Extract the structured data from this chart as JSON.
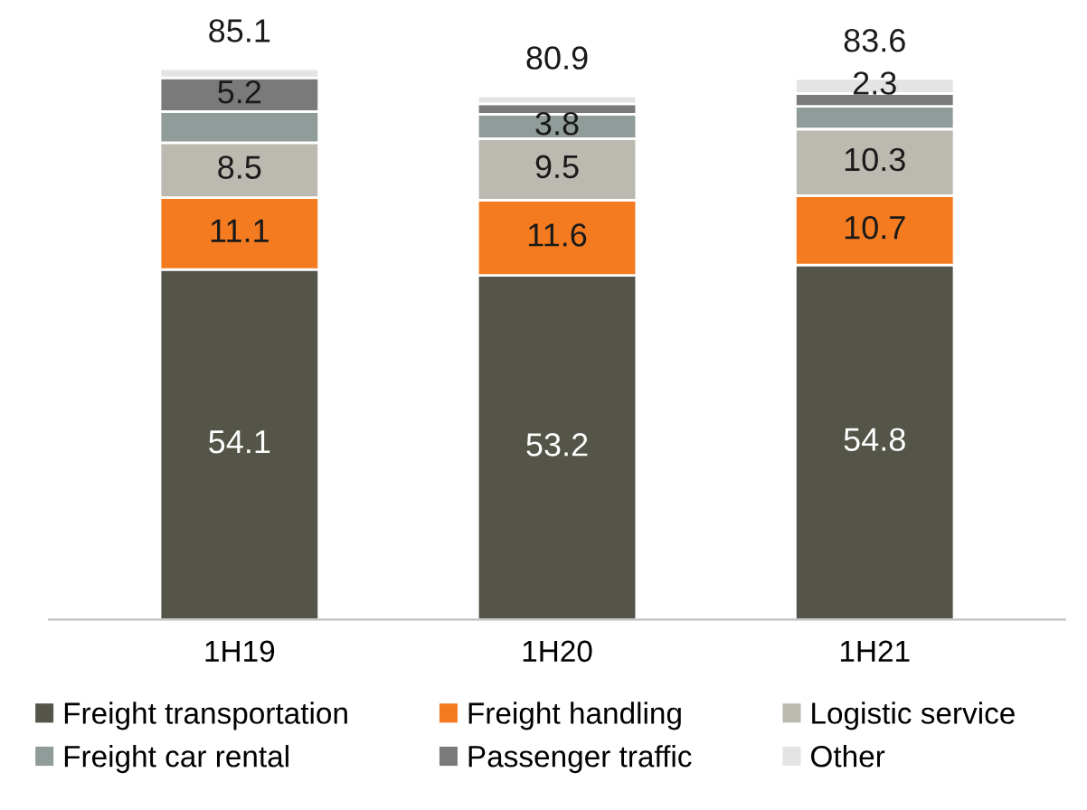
{
  "chart_data": {
    "type": "bar",
    "stacked": true,
    "categories": [
      "1H19",
      "1H20",
      "1H21"
    ],
    "series": [
      {
        "name": "Freight transportation",
        "color": "#545448",
        "values": [
          54.1,
          53.2,
          54.8
        ],
        "value_labels": [
          "54.1",
          "53.2",
          "54.8"
        ]
      },
      {
        "name": "Freight handling",
        "color": "#f47b20",
        "values": [
          11.1,
          11.6,
          10.7
        ],
        "value_labels": [
          "11.1",
          "11.6",
          "10.7"
        ]
      },
      {
        "name": "Logistic service",
        "color": "#bcb9b0",
        "values": [
          8.5,
          9.5,
          10.3
        ],
        "value_labels": [
          "8.5",
          "9.5",
          "10.3"
        ]
      },
      {
        "name": "Freight car rental",
        "color": "#8f9c9a",
        "values": [
          4.8,
          3.8,
          3.5
        ],
        "value_labels": [
          null,
          "3.8",
          null
        ]
      },
      {
        "name": "Passenger traffic",
        "color": "#7a7a7a",
        "values": [
          5.2,
          1.6,
          2.0
        ],
        "value_labels": [
          "5.2",
          null,
          null
        ]
      },
      {
        "name": "Other",
        "color": "#e4e4e4",
        "values": [
          1.4,
          1.2,
          2.3
        ],
        "value_labels": [
          null,
          null,
          "2.3"
        ]
      }
    ],
    "totals": [
      "85.1",
      "80.9",
      "83.6"
    ],
    "legend": "bottom",
    "grid": false,
    "tick_labels": "x"
  }
}
